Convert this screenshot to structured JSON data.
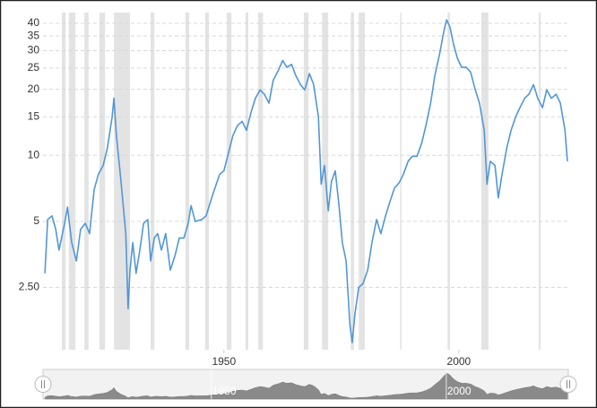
{
  "chart_data": {
    "type": "line",
    "log_scale": true,
    "grid": true,
    "x": [
      1911.9,
      1912.5,
      1913.4,
      1914.2,
      1914.9,
      1916.1,
      1916.7,
      1917.6,
      1918.6,
      1919.5,
      1920.5,
      1921.4,
      1922.4,
      1923.3,
      1924.3,
      1925.2,
      1926.2,
      1926.6,
      1927.1,
      1928.1,
      1929.1,
      1929.6,
      1930.0,
      1930.6,
      1931.3,
      1932.1,
      1932.9,
      1933.8,
      1934.4,
      1935.2,
      1935.9,
      1936.7,
      1937.6,
      1938.6,
      1939.6,
      1940.5,
      1941.5,
      1942.4,
      1943.0,
      1943.9,
      1945.3,
      1946.2,
      1947.2,
      1948.1,
      1949.1,
      1950.0,
      1951.0,
      1951.9,
      1952.9,
      1953.9,
      1954.8,
      1955.8,
      1956.7,
      1957.7,
      1958.6,
      1959.6,
      1960.5,
      1961.5,
      1962.5,
      1963.4,
      1964.4,
      1965.3,
      1966.3,
      1967.2,
      1968.2,
      1969.1,
      1970.1,
      1970.7,
      1971.4,
      1972.2,
      1972.9,
      1973.7,
      1974.5,
      1975.2,
      1976.0,
      1976.8,
      1977.3,
      1977.9,
      1978.7,
      1979.6,
      1980.6,
      1981.5,
      1982.5,
      1983.4,
      1984.4,
      1985.4,
      1986.3,
      1987.3,
      1988.2,
      1989.2,
      1990.1,
      1991.1,
      1992.1,
      1993.0,
      1994.0,
      1994.9,
      1995.9,
      1996.8,
      1997.4,
      1998.1,
      1998.9,
      1999.7,
      2000.6,
      2001.6,
      2002.5,
      2003.5,
      2004.4,
      2005.4,
      2006.0,
      2006.7,
      2007.7,
      2008.4,
      2009.2,
      2010.2,
      2011.1,
      2012.1,
      2013.0,
      2014.0,
      2014.9,
      2015.9,
      2016.8,
      2017.8,
      2018.7,
      2019.7,
      2020.7,
      2021.6,
      2022.6,
      2023.1
    ],
    "series": [
      {
        "color": "#5297d6",
        "values": [
          2.9,
          5.1,
          5.3,
          4.6,
          3.7,
          4.9,
          5.8,
          4.0,
          3.3,
          4.6,
          4.9,
          4.4,
          7.0,
          8.2,
          9.0,
          10.8,
          15.0,
          18.2,
          12.4,
          7.6,
          4.4,
          2.0,
          3.0,
          4.0,
          2.9,
          3.7,
          4.9,
          5.1,
          3.3,
          4.2,
          4.4,
          3.7,
          4.4,
          3.0,
          3.5,
          4.2,
          4.2,
          4.9,
          5.9,
          5.0,
          5.1,
          5.3,
          6.2,
          7.1,
          8.2,
          8.5,
          10.3,
          12.3,
          13.7,
          14.3,
          13.0,
          15.8,
          18.2,
          19.9,
          19.0,
          17.3,
          22.0,
          24.2,
          27.1,
          25.2,
          26.0,
          23.1,
          21.0,
          19.9,
          23.6,
          21.0,
          15.0,
          7.4,
          9.0,
          5.6,
          7.6,
          8.5,
          5.9,
          4.0,
          3.3,
          1.7,
          1.4,
          1.9,
          2.5,
          2.6,
          3.0,
          4.0,
          5.1,
          4.4,
          5.3,
          6.2,
          7.1,
          7.5,
          8.2,
          9.4,
          9.9,
          9.9,
          11.4,
          13.7,
          17.3,
          23.1,
          29.0,
          36.7,
          41.5,
          38.5,
          31.9,
          27.7,
          25.2,
          25.2,
          24.0,
          19.9,
          17.3,
          13.0,
          7.4,
          9.4,
          9.0,
          6.4,
          8.2,
          10.8,
          13.0,
          15.0,
          16.5,
          18.2,
          19.0,
          21.0,
          18.2,
          16.5,
          19.9,
          18.2,
          19.0,
          17.3,
          13.0,
          9.4
        ]
      }
    ],
    "shaded_regions": [
      [
        1915.5,
        1916.3
      ],
      [
        1917.0,
        1918.4
      ],
      [
        1920.3,
        1921.2
      ],
      [
        1923.5,
        1924.7
      ],
      [
        1926.6,
        1930.0
      ],
      [
        1934.4,
        1935.2
      ],
      [
        1941.8,
        1942.6
      ],
      [
        1946.0,
        1946.8
      ],
      [
        1950.6,
        1951.6
      ],
      [
        1954.6,
        1955.2
      ],
      [
        1957.3,
        1958.3
      ],
      [
        1967.0,
        1968.0
      ],
      [
        1970.9,
        1972.2
      ],
      [
        1977.0,
        1977.7
      ],
      [
        1978.7,
        1980.0
      ],
      [
        1987.5,
        1987.8
      ],
      [
        1997.6,
        1998.1
      ],
      [
        2004.8,
        2006.3
      ],
      [
        2017.0,
        2017.4
      ]
    ],
    "xlim": [
      1911.5,
      2023.3
    ],
    "xticks": [
      1950,
      2000
    ],
    "ylim": [
      1.3,
      46.5
    ],
    "yticks": [
      {
        "value": 2.5,
        "label": "2.50"
      },
      5,
      10,
      15,
      20,
      25,
      30,
      35,
      40
    ]
  }
}
